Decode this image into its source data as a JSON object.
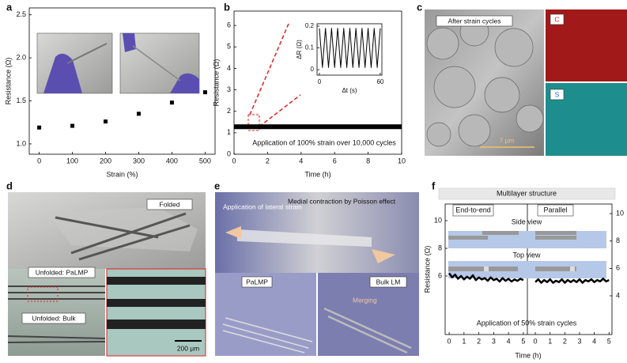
{
  "panel_labels": [
    "a",
    "b",
    "c",
    "d",
    "e",
    "f"
  ],
  "chart_data": [
    {
      "type": "scatter",
      "xlabel": "Strain (%)",
      "ylabel": "Resistance (Ω)",
      "xlim": [
        -30,
        530
      ],
      "ylim": [
        0.88,
        2.58
      ],
      "xticks": [
        0,
        100,
        200,
        300,
        400,
        500
      ],
      "yticks": [
        {
          "value": 1,
          "label": "1.0"
        },
        {
          "value": 1.5,
          "label": "1.5"
        },
        {
          "value": 2,
          "label": "2.0"
        },
        {
          "value": 2.5,
          "label": "2.5"
        }
      ],
      "series": [
        {
          "color": "#000000",
          "x": [
            0,
            100,
            200,
            300,
            400,
            500
          ],
          "values": [
            1.19,
            1.21,
            1.26,
            1.35,
            1.48,
            1.6
          ]
        }
      ]
    },
    {
      "type": "line",
      "xlabel": "Time (h)",
      "ylabel": "Resistance (Ω)",
      "annotation": "Application of 100% strain over 10,000 cycles",
      "xlim": [
        0,
        10
      ],
      "ylim": [
        0,
        6.67
      ],
      "xticks": [
        0,
        2,
        4,
        6,
        8,
        10
      ],
      "yticks": [
        0,
        1,
        2,
        3,
        4,
        5,
        6
      ],
      "series": [
        {
          "color": "#000000",
          "x": [
            0,
            10
          ],
          "values": [
            1.28,
            1.28
          ]
        }
      ]
    },
    {
      "type": "line",
      "xlabel": "Δt (s)",
      "ylabel": "ΔR (Ω)",
      "xlim": [
        -2.3,
        61.6
      ],
      "ylim": [
        -0.025,
        0.211
      ],
      "xticks": [
        0,
        60
      ],
      "yticks": [
        0,
        {
          "value": 0.1,
          "label": "0.1"
        },
        {
          "value": 0.2,
          "label": "0.2"
        }
      ],
      "series": [
        {
          "color": "#000000",
          "x": [
            0,
            1.5,
            3,
            4.5,
            6,
            7.5,
            9,
            10.5,
            12,
            13.5,
            15,
            16.5,
            18,
            19.5,
            21,
            22.5,
            24,
            25.5,
            27,
            28.5,
            30,
            31.5,
            33,
            34.5,
            36,
            37.5,
            39,
            40.5,
            42,
            43.5,
            45,
            46.5,
            48,
            49.5,
            51,
            52.5,
            54,
            55.5,
            57,
            58.5,
            60
          ],
          "values": [
            0.19,
            0.1,
            0.01,
            0.1,
            0.19,
            0.1,
            0.01,
            0.1,
            0.19,
            0.1,
            0.01,
            0.1,
            0.19,
            0.1,
            0.01,
            0.1,
            0.19,
            0.1,
            0.01,
            0.1,
            0.19,
            0.1,
            0.01,
            0.1,
            0.19,
            0.1,
            0.01,
            0.1,
            0.19,
            0.1,
            0.01,
            0.1,
            0.19,
            0.1,
            0.01,
            0.1,
            0.19,
            0.1,
            0.01,
            0.1,
            0.19
          ]
        }
      ]
    },
    {
      "type": "line",
      "xlabel": "Time (h)",
      "ylabel": "Resistance (Ω)",
      "annotation": "Application of 50% strain cycles",
      "xlim": [
        -0.27,
        5.27
      ],
      "ylim": [
        1.77,
        11.2
      ],
      "xticks": [
        0,
        1,
        2,
        3,
        4,
        5
      ],
      "yticks": [
        6,
        8,
        10
      ],
      "series": [
        {
          "color": "#000000",
          "x": [
            0,
            0.2,
            0.4,
            0.6,
            0.8,
            1,
            1.2,
            1.4,
            1.6,
            1.8,
            2,
            2.2,
            2.4,
            2.6,
            2.8,
            3,
            3.2,
            3.4,
            3.6,
            3.8,
            4,
            4.2,
            4.4,
            4.6,
            4.8,
            5
          ],
          "values": [
            6.2,
            5.9,
            6.1,
            5.8,
            6.0,
            5.75,
            5.95,
            5.8,
            6.05,
            5.7,
            5.9,
            5.75,
            5.85,
            5.65,
            5.9,
            5.7,
            5.8,
            5.6,
            5.85,
            5.65,
            5.8,
            5.6,
            5.75,
            5.65,
            5.8,
            5.7
          ]
        }
      ]
    },
    {
      "type": "line",
      "xlim": [
        -0.54,
        5.2
      ],
      "ylim": [
        1.17,
        10.7
      ],
      "xticks": [
        0,
        1,
        2,
        3,
        4,
        5
      ],
      "yticks": [
        4,
        6,
        8,
        10
      ],
      "series": [
        {
          "color": "#000000",
          "x": [
            0,
            0.2,
            0.4,
            0.6,
            0.8,
            1,
            1.2,
            1.4,
            1.6,
            1.8,
            2,
            2.2,
            2.4,
            2.6,
            2.8,
            3,
            3.2,
            3.4,
            3.6,
            3.8,
            4,
            4.2,
            4.4,
            4.6,
            4.8,
            5
          ],
          "values": [
            5.0,
            5.2,
            4.95,
            5.15,
            5.0,
            5.2,
            4.95,
            5.1,
            5.0,
            5.2,
            4.95,
            5.15,
            5.0,
            5.15,
            5.0,
            5.2,
            4.95,
            5.15,
            5.05,
            5.2,
            5.0,
            5.15,
            5.05,
            5.25,
            5.05,
            5.15
          ]
        }
      ]
    }
  ],
  "images": {
    "c": {
      "label": "After strain cycles",
      "maps": [
        "C",
        "S"
      ],
      "scale": "7 μm"
    },
    "d": {
      "labels": [
        "Folded",
        "Unfolded: PaLMP",
        "Unfolded: Bulk"
      ],
      "scale": "200 μm"
    },
    "e": {
      "labels": [
        "Application of lateral strain",
        "Medial contraction by Poisson effect",
        "PaLMP",
        "Bulk LM",
        "Merging"
      ]
    }
  },
  "f_diagram": {
    "header": "Multilayer structure",
    "columns": [
      "End-to-end",
      "Parallel"
    ],
    "views": [
      "Side view",
      "Top view"
    ]
  }
}
